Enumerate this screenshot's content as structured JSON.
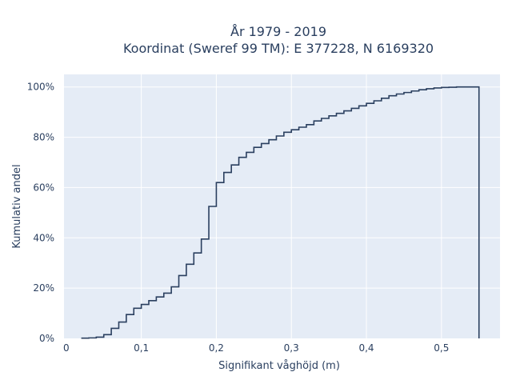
{
  "chart_data": {
    "type": "line",
    "title": "År 1979 - 2019",
    "subtitle": "Koordinat (Sweref 99 TM): E 377228, N 6169320",
    "xlabel": "Signifikant våghöjd (m)",
    "ylabel": "Kumulativ andel",
    "xlim": [
      -0.003,
      0.578
    ],
    "ylim": [
      0,
      1.05
    ],
    "x_ticks": [
      0,
      0.1,
      0.2,
      0.3,
      0.4,
      0.5
    ],
    "x_tick_labels": [
      "0",
      "0,1",
      "0,2",
      "0,3",
      "0,4",
      "0,5"
    ],
    "y_ticks": [
      0,
      0.2,
      0.4,
      0.6,
      0.8,
      1.0
    ],
    "y_tick_labels": [
      "0%",
      "20%",
      "40%",
      "60%",
      "80%",
      "100%"
    ],
    "grid": true,
    "line_color": "#2a3f5f",
    "plot_bg": "#e5ecf6",
    "series": [
      {
        "step": "post",
        "x": [
          0.02,
          0.03,
          0.04,
          0.05,
          0.06,
          0.07,
          0.08,
          0.09,
          0.1,
          0.11,
          0.12,
          0.13,
          0.14,
          0.15,
          0.16,
          0.17,
          0.18,
          0.19,
          0.2,
          0.21,
          0.22,
          0.23,
          0.24,
          0.25,
          0.26,
          0.27,
          0.28,
          0.29,
          0.3,
          0.31,
          0.32,
          0.33,
          0.34,
          0.35,
          0.36,
          0.37,
          0.38,
          0.39,
          0.4,
          0.41,
          0.42,
          0.43,
          0.44,
          0.45,
          0.46,
          0.47,
          0.48,
          0.49,
          0.5,
          0.51,
          0.52,
          0.53,
          0.54,
          0.55,
          0.55
        ],
        "y": [
          0.001,
          0.002,
          0.005,
          0.015,
          0.04,
          0.065,
          0.095,
          0.12,
          0.135,
          0.15,
          0.165,
          0.18,
          0.205,
          0.25,
          0.295,
          0.34,
          0.395,
          0.525,
          0.62,
          0.66,
          0.69,
          0.72,
          0.74,
          0.76,
          0.775,
          0.79,
          0.805,
          0.82,
          0.83,
          0.84,
          0.85,
          0.865,
          0.875,
          0.885,
          0.895,
          0.905,
          0.915,
          0.925,
          0.935,
          0.945,
          0.955,
          0.965,
          0.972,
          0.978,
          0.984,
          0.989,
          0.993,
          0.996,
          0.998,
          0.999,
          1.0,
          1.0,
          1.0,
          1.0,
          0.0
        ]
      }
    ]
  }
}
